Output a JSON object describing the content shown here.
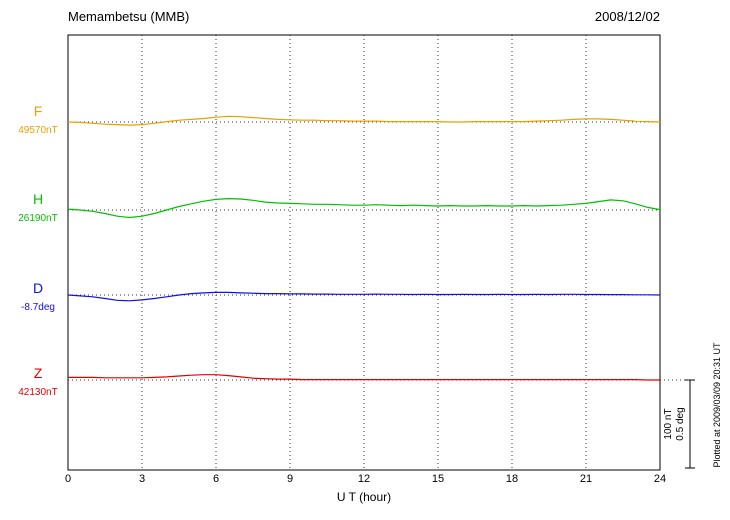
{
  "header": {
    "station": "Memambetsu (MMB)",
    "date": "2008/12/02"
  },
  "axis": {
    "xlabel": "U T (hour)"
  },
  "scale_bar": {
    "nt_label": "100 nT",
    "deg_label": "0.5 deg"
  },
  "footer_note": "Plotted at 2009/03/09 20:31 UT",
  "chart_data": {
    "type": "line",
    "title": "Memambetsu (MMB) geomagnetic variations 2008/12/02",
    "xlabel": "U T (hour)",
    "x_range": [
      0,
      24
    ],
    "x_ticks": [
      0,
      3,
      6,
      9,
      12,
      15,
      18,
      21,
      24
    ],
    "grid": "vertical dotted lines every 3 hours; dotted horizontal baseline per trace",
    "legend_position": "left margin, one colored letter per trace",
    "x_step_hours": 0.5,
    "scale_bar": {
      "nT": 100,
      "deg": 0.5
    },
    "series": [
      {
        "name": "F",
        "unit": "nT",
        "baseline_value": 49570,
        "baseline_label": "49570nT",
        "color": "#e8a000",
        "offsets": [
          0,
          -0.5,
          -1.5,
          -2.5,
          -3,
          -3.5,
          -3,
          -1.5,
          0.5,
          2,
          3,
          4,
          5.5,
          6.5,
          6,
          5,
          4,
          3,
          2.5,
          2,
          2,
          1.5,
          1.5,
          1,
          1,
          1,
          0.5,
          0.5,
          0.5,
          0.5,
          0.5,
          0,
          0,
          0.5,
          0.5,
          0.5,
          0.5,
          0.5,
          1,
          1.5,
          2,
          3,
          3.5,
          3.5,
          3,
          2,
          1,
          0.5,
          0
        ]
      },
      {
        "name": "H",
        "unit": "nT",
        "baseline_value": 26190,
        "baseline_label": "26190nT",
        "color": "#00c000",
        "offsets": [
          1,
          0,
          -1.5,
          -4,
          -7,
          -8.5,
          -7,
          -4,
          0,
          4,
          7,
          10,
          12,
          13,
          12.5,
          11,
          9,
          8,
          7.5,
          7,
          6.5,
          6.5,
          6,
          5.5,
          5.5,
          6,
          5.5,
          5,
          5.5,
          5,
          4.5,
          5,
          4.5,
          4.5,
          5,
          4.5,
          4.5,
          5,
          4.5,
          5,
          5.5,
          6.5,
          7.5,
          9.5,
          11.5,
          10.5,
          7,
          3,
          0.5
        ]
      },
      {
        "name": "D",
        "unit": "deg",
        "baseline_value": -8.7,
        "baseline_label": "-8.7deg",
        "color": "#1010e0",
        "offsets": [
          0,
          -0.005,
          -0.01,
          -0.02,
          -0.03,
          -0.033,
          -0.028,
          -0.02,
          -0.01,
          0,
          0.008,
          0.012,
          0.015,
          0.015,
          0.012,
          0.01,
          0.008,
          0.008,
          0.006,
          0.006,
          0.005,
          0.005,
          0.004,
          0.004,
          0.004,
          0.005,
          0.004,
          0.004,
          0.003,
          0.004,
          0.003,
          0.003,
          0.004,
          0.003,
          0.003,
          0.004,
          0.003,
          0.003,
          0.004,
          0.003,
          0.004,
          0.004,
          0.003,
          0.003,
          0.002,
          0.002,
          0.001,
          0.001,
          0
        ]
      },
      {
        "name": "Z",
        "unit": "nT",
        "baseline_value": 42130,
        "baseline_label": "42130nT",
        "color": "#e00000",
        "offsets": [
          3,
          3,
          3,
          2.5,
          2.5,
          2.5,
          2.5,
          3,
          3.5,
          4.5,
          5.5,
          6,
          6,
          5,
          3.5,
          2,
          1.5,
          1,
          1,
          0.5,
          0.5,
          0.5,
          0.5,
          0.5,
          0.5,
          0.5,
          0.5,
          0.5,
          0.5,
          0.5,
          0.5,
          0.5,
          0.5,
          0.5,
          0.5,
          0.5,
          0.5,
          0.5,
          0.5,
          0.5,
          0.5,
          0.5,
          0.5,
          0.5,
          0.5,
          0.5,
          0.5,
          0,
          0
        ]
      }
    ]
  }
}
